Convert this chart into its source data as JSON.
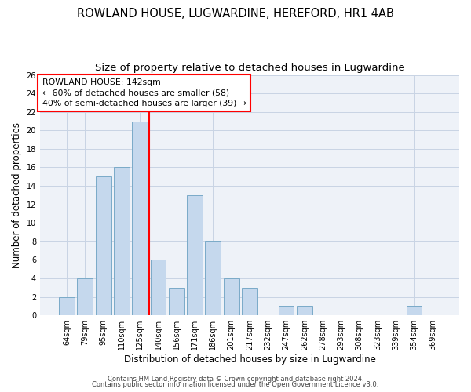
{
  "title1": "ROWLAND HOUSE, LUGWARDINE, HEREFORD, HR1 4AB",
  "title2": "Size of property relative to detached houses in Lugwardine",
  "xlabel": "Distribution of detached houses by size in Lugwardine",
  "ylabel": "Number of detached properties",
  "categories": [
    "64sqm",
    "79sqm",
    "95sqm",
    "110sqm",
    "125sqm",
    "140sqm",
    "156sqm",
    "171sqm",
    "186sqm",
    "201sqm",
    "217sqm",
    "232sqm",
    "247sqm",
    "262sqm",
    "278sqm",
    "293sqm",
    "308sqm",
    "323sqm",
    "339sqm",
    "354sqm",
    "369sqm"
  ],
  "values": [
    2,
    4,
    15,
    16,
    21,
    6,
    3,
    13,
    8,
    4,
    3,
    0,
    1,
    1,
    0,
    0,
    0,
    0,
    0,
    1,
    0
  ],
  "bar_color": "#c5d8ed",
  "bar_edge_color": "#7aaac8",
  "annotation_text": "ROWLAND HOUSE: 142sqm\n← 60% of detached houses are smaller (58)\n40% of semi-detached houses are larger (39) →",
  "annotation_box_color": "white",
  "annotation_box_edge": "red",
  "vline_color": "red",
  "vline_x": 5,
  "ylim": [
    0,
    26
  ],
  "yticks": [
    0,
    2,
    4,
    6,
    8,
    10,
    12,
    14,
    16,
    18,
    20,
    22,
    24,
    26
  ],
  "footnote1": "Contains HM Land Registry data © Crown copyright and database right 2024.",
  "footnote2": "Contains public sector information licensed under the Open Government Licence v3.0.",
  "background_color": "#eef2f8",
  "grid_color": "#c8d4e4",
  "title1_fontsize": 10.5,
  "title2_fontsize": 9.5,
  "tick_fontsize": 7,
  "ylabel_fontsize": 8.5,
  "xlabel_fontsize": 8.5,
  "annotation_fontsize": 7.8,
  "footnote_fontsize": 6
}
